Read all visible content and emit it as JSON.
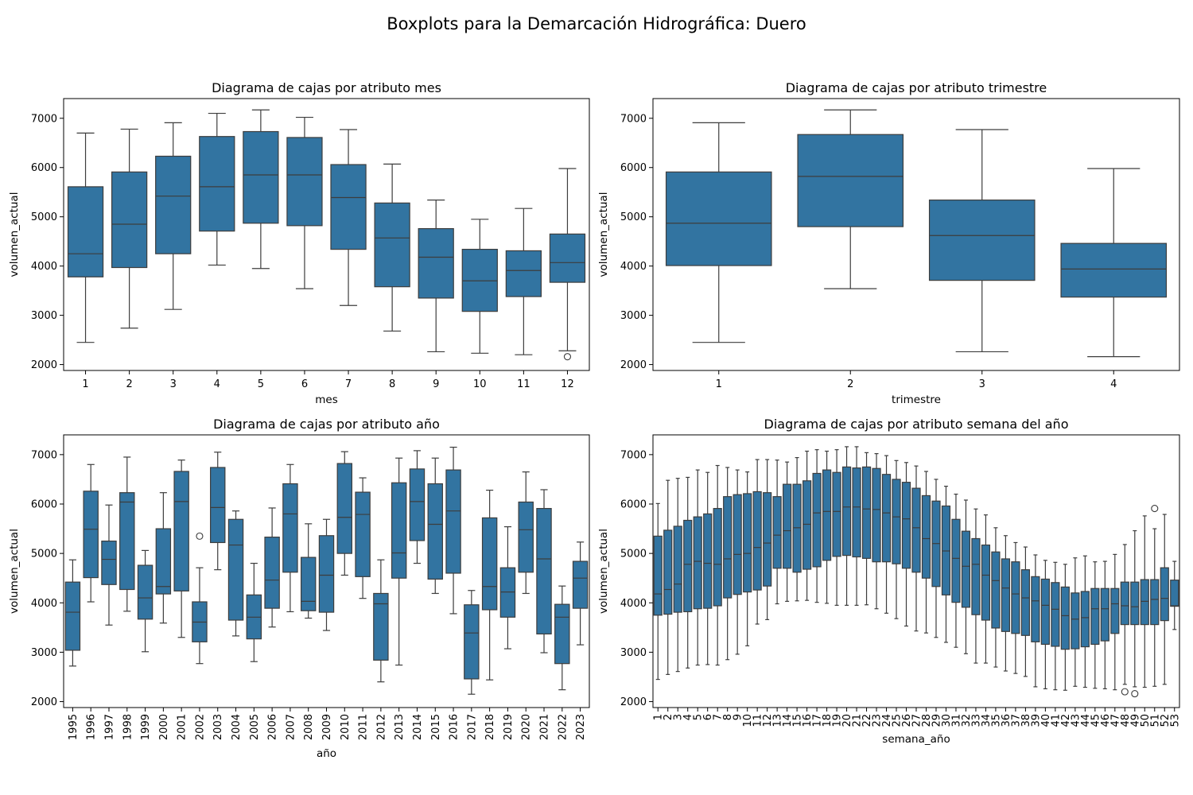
{
  "figure": {
    "suptitle": "Boxplots para la Demarcación Hidrográfica: Duero",
    "box_color": "#3274a1",
    "line_color": "#3d3d3d"
  },
  "chart_data": [
    {
      "type": "box",
      "title": "Diagrama de cajas por atributo mes",
      "xlabel": "mes",
      "ylabel": "volumen_actual",
      "ylim": [
        1880,
        7400
      ],
      "yticks": [
        2000,
        3000,
        4000,
        5000,
        6000,
        7000
      ],
      "xtick_rotation": 0,
      "categories": [
        "1",
        "2",
        "3",
        "4",
        "5",
        "6",
        "7",
        "8",
        "9",
        "10",
        "11",
        "12"
      ],
      "boxes": [
        {
          "whislo": 2450,
          "q1": 3780,
          "med": 4250,
          "q3": 5610,
          "whishi": 6700,
          "fliers": []
        },
        {
          "whislo": 2740,
          "q1": 3970,
          "med": 4850,
          "q3": 5910,
          "whishi": 6780,
          "fliers": []
        },
        {
          "whislo": 3120,
          "q1": 4250,
          "med": 5420,
          "q3": 6230,
          "whishi": 6910,
          "fliers": []
        },
        {
          "whislo": 4020,
          "q1": 4710,
          "med": 5610,
          "q3": 6630,
          "whishi": 7100,
          "fliers": []
        },
        {
          "whislo": 3950,
          "q1": 4870,
          "med": 5850,
          "q3": 6730,
          "whishi": 7170,
          "fliers": []
        },
        {
          "whislo": 3540,
          "q1": 4820,
          "med": 5850,
          "q3": 6610,
          "whishi": 7020,
          "fliers": []
        },
        {
          "whislo": 3200,
          "q1": 4340,
          "med": 5390,
          "q3": 6060,
          "whishi": 6770,
          "fliers": []
        },
        {
          "whislo": 2680,
          "q1": 3580,
          "med": 4570,
          "q3": 5280,
          "whishi": 6070,
          "fliers": []
        },
        {
          "whislo": 2260,
          "q1": 3350,
          "med": 4180,
          "q3": 4760,
          "whishi": 5340,
          "fliers": []
        },
        {
          "whislo": 2230,
          "q1": 3080,
          "med": 3700,
          "q3": 4340,
          "whishi": 4950,
          "fliers": []
        },
        {
          "whislo": 2200,
          "q1": 3380,
          "med": 3910,
          "q3": 4310,
          "whishi": 5170,
          "fliers": []
        },
        {
          "whislo": 2280,
          "q1": 3670,
          "med": 4070,
          "q3": 4650,
          "whishi": 5980,
          "fliers": [
            2160
          ]
        }
      ]
    },
    {
      "type": "box",
      "title": "Diagrama de cajas por atributo trimestre",
      "xlabel": "trimestre",
      "ylabel": "volumen_actual",
      "ylim": [
        1880,
        7400
      ],
      "yticks": [
        2000,
        3000,
        4000,
        5000,
        6000,
        7000
      ],
      "xtick_rotation": 0,
      "categories": [
        "1",
        "2",
        "3",
        "4"
      ],
      "boxes": [
        {
          "whislo": 2450,
          "q1": 4010,
          "med": 4870,
          "q3": 5910,
          "whishi": 6910,
          "fliers": []
        },
        {
          "whislo": 3540,
          "q1": 4800,
          "med": 5820,
          "q3": 6670,
          "whishi": 7170,
          "fliers": []
        },
        {
          "whislo": 2260,
          "q1": 3710,
          "med": 4620,
          "q3": 5340,
          "whishi": 6770,
          "fliers": []
        },
        {
          "whislo": 2160,
          "q1": 3370,
          "med": 3940,
          "q3": 4460,
          "whishi": 5980,
          "fliers": []
        }
      ]
    },
    {
      "type": "box",
      "title": "Diagrama de cajas por atributo año",
      "xlabel": "año",
      "ylabel": "volumen_actual",
      "ylim": [
        1880,
        7400
      ],
      "yticks": [
        2000,
        3000,
        4000,
        5000,
        6000,
        7000
      ],
      "xtick_rotation": -90,
      "categories": [
        "1995",
        "1996",
        "1997",
        "1998",
        "1999",
        "2000",
        "2001",
        "2002",
        "2003",
        "2004",
        "2005",
        "2006",
        "2007",
        "2008",
        "2009",
        "2010",
        "2011",
        "2012",
        "2013",
        "2014",
        "2015",
        "2016",
        "2017",
        "2018",
        "2019",
        "2020",
        "2021",
        "2022",
        "2023"
      ],
      "boxes": [
        {
          "whislo": 2720,
          "q1": 3040,
          "med": 3810,
          "q3": 4420,
          "whishi": 4870,
          "fliers": []
        },
        {
          "whislo": 4020,
          "q1": 4510,
          "med": 5490,
          "q3": 6260,
          "whishi": 6800,
          "fliers": []
        },
        {
          "whislo": 3550,
          "q1": 4370,
          "med": 4880,
          "q3": 5250,
          "whishi": 5980,
          "fliers": []
        },
        {
          "whislo": 3830,
          "q1": 4270,
          "med": 6040,
          "q3": 6230,
          "whishi": 6950,
          "fliers": []
        },
        {
          "whislo": 3010,
          "q1": 3670,
          "med": 4100,
          "q3": 4760,
          "whishi": 5060,
          "fliers": []
        },
        {
          "whislo": 3590,
          "q1": 4180,
          "med": 4330,
          "q3": 5500,
          "whishi": 6230,
          "fliers": []
        },
        {
          "whislo": 3300,
          "q1": 4240,
          "med": 6050,
          "q3": 6660,
          "whishi": 6890,
          "fliers": []
        },
        {
          "whislo": 2770,
          "q1": 3210,
          "med": 3610,
          "q3": 4020,
          "whishi": 4710,
          "fliers": [
            5350
          ]
        },
        {
          "whislo": 4670,
          "q1": 5220,
          "med": 5930,
          "q3": 6740,
          "whishi": 7050,
          "fliers": []
        },
        {
          "whislo": 3330,
          "q1": 3650,
          "med": 5170,
          "q3": 5690,
          "whishi": 5860,
          "fliers": []
        },
        {
          "whislo": 2810,
          "q1": 3270,
          "med": 3710,
          "q3": 4160,
          "whishi": 4800,
          "fliers": []
        },
        {
          "whislo": 3510,
          "q1": 3890,
          "med": 4460,
          "q3": 5330,
          "whishi": 5920,
          "fliers": []
        },
        {
          "whislo": 3820,
          "q1": 4620,
          "med": 5800,
          "q3": 6410,
          "whishi": 6800,
          "fliers": []
        },
        {
          "whislo": 3690,
          "q1": 3840,
          "med": 4030,
          "q3": 4920,
          "whishi": 5600,
          "fliers": []
        },
        {
          "whislo": 3440,
          "q1": 3810,
          "med": 4560,
          "q3": 5360,
          "whishi": 5690,
          "fliers": []
        },
        {
          "whislo": 4560,
          "q1": 5000,
          "med": 5730,
          "q3": 6820,
          "whishi": 7060,
          "fliers": []
        },
        {
          "whislo": 4090,
          "q1": 4530,
          "med": 5790,
          "q3": 6240,
          "whishi": 6530,
          "fliers": []
        },
        {
          "whislo": 2400,
          "q1": 2840,
          "med": 3980,
          "q3": 4190,
          "whishi": 4870,
          "fliers": []
        },
        {
          "whislo": 2740,
          "q1": 4500,
          "med": 5010,
          "q3": 6430,
          "whishi": 6930,
          "fliers": []
        },
        {
          "whislo": 4800,
          "q1": 5260,
          "med": 6050,
          "q3": 6710,
          "whishi": 7080,
          "fliers": []
        },
        {
          "whislo": 4190,
          "q1": 4480,
          "med": 5590,
          "q3": 6410,
          "whishi": 6930,
          "fliers": []
        },
        {
          "whislo": 3780,
          "q1": 4600,
          "med": 5860,
          "q3": 6690,
          "whishi": 7150,
          "fliers": []
        },
        {
          "whislo": 2150,
          "q1": 2460,
          "med": 3390,
          "q3": 3960,
          "whishi": 4250,
          "fliers": []
        },
        {
          "whislo": 2440,
          "q1": 3860,
          "med": 4330,
          "q3": 5720,
          "whishi": 6280,
          "fliers": []
        },
        {
          "whislo": 3070,
          "q1": 3710,
          "med": 4220,
          "q3": 4710,
          "whishi": 5540,
          "fliers": []
        },
        {
          "whislo": 4190,
          "q1": 4620,
          "med": 5480,
          "q3": 6040,
          "whishi": 6650,
          "fliers": []
        },
        {
          "whislo": 2990,
          "q1": 3370,
          "med": 4890,
          "q3": 5910,
          "whishi": 6290,
          "fliers": []
        },
        {
          "whislo": 2240,
          "q1": 2770,
          "med": 3710,
          "q3": 3970,
          "whishi": 4340,
          "fliers": []
        },
        {
          "whislo": 3150,
          "q1": 3890,
          "med": 4500,
          "q3": 4840,
          "whishi": 5230,
          "fliers": []
        }
      ]
    },
    {
      "type": "box",
      "title": "Diagrama de cajas por atributo semana del año",
      "xlabel": "semana_año",
      "ylabel": "volumen_actual",
      "ylim": [
        1880,
        7400
      ],
      "yticks": [
        2000,
        3000,
        4000,
        5000,
        6000,
        7000
      ],
      "xtick_rotation": -90,
      "categories": [
        "1",
        "2",
        "3",
        "4",
        "5",
        "6",
        "7",
        "8",
        "9",
        "10",
        "11",
        "12",
        "13",
        "14",
        "15",
        "16",
        "17",
        "18",
        "19",
        "20",
        "21",
        "22",
        "23",
        "24",
        "25",
        "26",
        "27",
        "28",
        "29",
        "30",
        "31",
        "32",
        "33",
        "34",
        "35",
        "36",
        "37",
        "38",
        "39",
        "40",
        "41",
        "42",
        "43",
        "44",
        "45",
        "46",
        "47",
        "48",
        "49",
        "50",
        "51",
        "52",
        "53"
      ],
      "boxes": [
        {
          "whislo": 2450,
          "q1": 3750,
          "med": 4180,
          "q3": 5350,
          "whishi": 6010,
          "fliers": []
        },
        {
          "whislo": 2550,
          "q1": 3770,
          "med": 4270,
          "q3": 5470,
          "whishi": 6480,
          "fliers": []
        },
        {
          "whislo": 2610,
          "q1": 3810,
          "med": 4380,
          "q3": 5550,
          "whishi": 6520,
          "fliers": []
        },
        {
          "whislo": 2680,
          "q1": 3820,
          "med": 4780,
          "q3": 5670,
          "whishi": 6540,
          "fliers": []
        },
        {
          "whislo": 2740,
          "q1": 3880,
          "med": 4840,
          "q3": 5740,
          "whishi": 6690,
          "fliers": []
        },
        {
          "whislo": 2750,
          "q1": 3890,
          "med": 4800,
          "q3": 5800,
          "whishi": 6640,
          "fliers": []
        },
        {
          "whislo": 2740,
          "q1": 3940,
          "med": 4780,
          "q3": 5910,
          "whishi": 6780,
          "fliers": []
        },
        {
          "whislo": 2850,
          "q1": 4100,
          "med": 4890,
          "q3": 6150,
          "whishi": 6740,
          "fliers": []
        },
        {
          "whislo": 2960,
          "q1": 4170,
          "med": 4980,
          "q3": 6190,
          "whishi": 6690,
          "fliers": []
        },
        {
          "whislo": 3130,
          "q1": 4220,
          "med": 5000,
          "q3": 6210,
          "whishi": 6650,
          "fliers": []
        },
        {
          "whislo": 3570,
          "q1": 4260,
          "med": 5120,
          "q3": 6250,
          "whishi": 6900,
          "fliers": []
        },
        {
          "whislo": 3660,
          "q1": 4340,
          "med": 5210,
          "q3": 6230,
          "whishi": 6900,
          "fliers": []
        },
        {
          "whislo": 3980,
          "q1": 4700,
          "med": 5370,
          "q3": 6150,
          "whishi": 6890,
          "fliers": []
        },
        {
          "whislo": 4030,
          "q1": 4700,
          "med": 5460,
          "q3": 6400,
          "whishi": 6850,
          "fliers": []
        },
        {
          "whislo": 4040,
          "q1": 4620,
          "med": 5520,
          "q3": 6400,
          "whishi": 6940,
          "fliers": []
        },
        {
          "whislo": 4050,
          "q1": 4680,
          "med": 5590,
          "q3": 6470,
          "whishi": 7070,
          "fliers": []
        },
        {
          "whislo": 4010,
          "q1": 4730,
          "med": 5820,
          "q3": 6620,
          "whishi": 7100,
          "fliers": []
        },
        {
          "whislo": 3990,
          "q1": 4860,
          "med": 5850,
          "q3": 6690,
          "whishi": 7070,
          "fliers": []
        },
        {
          "whislo": 3950,
          "q1": 4940,
          "med": 5850,
          "q3": 6640,
          "whishi": 7100,
          "fliers": []
        },
        {
          "whislo": 3950,
          "q1": 4960,
          "med": 5940,
          "q3": 6750,
          "whishi": 7160,
          "fliers": []
        },
        {
          "whislo": 3950,
          "q1": 4930,
          "med": 5940,
          "q3": 6730,
          "whishi": 7160,
          "fliers": []
        },
        {
          "whislo": 3960,
          "q1": 4900,
          "med": 5900,
          "q3": 6750,
          "whishi": 7040,
          "fliers": []
        },
        {
          "whislo": 3880,
          "q1": 4830,
          "med": 5890,
          "q3": 6720,
          "whishi": 7020,
          "fliers": []
        },
        {
          "whislo": 3790,
          "q1": 4830,
          "med": 5820,
          "q3": 6600,
          "whishi": 6980,
          "fliers": []
        },
        {
          "whislo": 3680,
          "q1": 4790,
          "med": 5740,
          "q3": 6500,
          "whishi": 6880,
          "fliers": []
        },
        {
          "whislo": 3530,
          "q1": 4700,
          "med": 5700,
          "q3": 6440,
          "whishi": 6840,
          "fliers": []
        },
        {
          "whislo": 3430,
          "q1": 4620,
          "med": 5520,
          "q3": 6320,
          "whishi": 6770,
          "fliers": []
        },
        {
          "whislo": 3390,
          "q1": 4500,
          "med": 5300,
          "q3": 6170,
          "whishi": 6660,
          "fliers": []
        },
        {
          "whislo": 3300,
          "q1": 4330,
          "med": 5200,
          "q3": 6060,
          "whishi": 6500,
          "fliers": []
        },
        {
          "whislo": 3200,
          "q1": 4160,
          "med": 5050,
          "q3": 5960,
          "whishi": 6360,
          "fliers": []
        },
        {
          "whislo": 3100,
          "q1": 4010,
          "med": 4900,
          "q3": 5690,
          "whishi": 6200,
          "fliers": []
        },
        {
          "whislo": 2970,
          "q1": 3910,
          "med": 4740,
          "q3": 5450,
          "whishi": 6080,
          "fliers": []
        },
        {
          "whislo": 2780,
          "q1": 3760,
          "med": 4780,
          "q3": 5300,
          "whishi": 5900,
          "fliers": []
        },
        {
          "whislo": 2780,
          "q1": 3650,
          "med": 4560,
          "q3": 5170,
          "whishi": 5780,
          "fliers": []
        },
        {
          "whislo": 2700,
          "q1": 3490,
          "med": 4450,
          "q3": 5030,
          "whishi": 5520,
          "fliers": []
        },
        {
          "whislo": 2620,
          "q1": 3420,
          "med": 4300,
          "q3": 4890,
          "whishi": 5360,
          "fliers": []
        },
        {
          "whislo": 2570,
          "q1": 3380,
          "med": 4180,
          "q3": 4830,
          "whishi": 5220,
          "fliers": []
        },
        {
          "whislo": 2510,
          "q1": 3340,
          "med": 4100,
          "q3": 4670,
          "whishi": 5130,
          "fliers": []
        },
        {
          "whislo": 2300,
          "q1": 3210,
          "med": 4040,
          "q3": 4530,
          "whishi": 4970,
          "fliers": []
        },
        {
          "whislo": 2260,
          "q1": 3160,
          "med": 3950,
          "q3": 4480,
          "whishi": 4860,
          "fliers": []
        },
        {
          "whislo": 2240,
          "q1": 3120,
          "med": 3870,
          "q3": 4410,
          "whishi": 4820,
          "fliers": []
        },
        {
          "whislo": 2230,
          "q1": 3060,
          "med": 3740,
          "q3": 4320,
          "whishi": 4780,
          "fliers": []
        },
        {
          "whislo": 2310,
          "q1": 3070,
          "med": 3670,
          "q3": 4200,
          "whishi": 4910,
          "fliers": []
        },
        {
          "whislo": 2290,
          "q1": 3110,
          "med": 3700,
          "q3": 4230,
          "whishi": 4950,
          "fliers": []
        },
        {
          "whislo": 2270,
          "q1": 3160,
          "med": 3880,
          "q3": 4290,
          "whishi": 4830,
          "fliers": []
        },
        {
          "whislo": 2260,
          "q1": 3230,
          "med": 3880,
          "q3": 4290,
          "whishi": 4840,
          "fliers": []
        },
        {
          "whislo": 2240,
          "q1": 3380,
          "med": 3980,
          "q3": 4290,
          "whishi": 4980,
          "fliers": []
        },
        {
          "whislo": 2350,
          "q1": 3560,
          "med": 3940,
          "q3": 4420,
          "whishi": 5180,
          "fliers": [
            2200
          ]
        },
        {
          "whislo": 2300,
          "q1": 3560,
          "med": 3920,
          "q3": 4420,
          "whishi": 5460,
          "fliers": [
            2160
          ]
        },
        {
          "whislo": 2290,
          "q1": 3560,
          "med": 4030,
          "q3": 4470,
          "whishi": 5760,
          "fliers": []
        },
        {
          "whislo": 2310,
          "q1": 3560,
          "med": 4070,
          "q3": 4470,
          "whishi": 5500,
          "fliers": [
            5910
          ]
        },
        {
          "whislo": 2350,
          "q1": 3640,
          "med": 4090,
          "q3": 4710,
          "whishi": 5790,
          "fliers": []
        },
        {
          "whislo": 3460,
          "q1": 3930,
          "med": 3940,
          "q3": 4460,
          "whishi": 4840,
          "fliers": []
        }
      ]
    }
  ]
}
